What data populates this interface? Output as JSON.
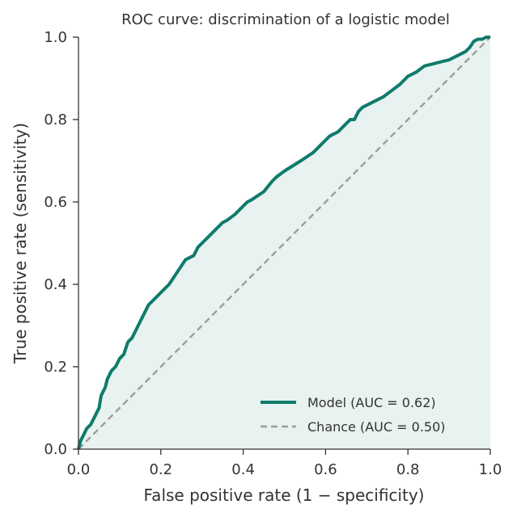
{
  "chart_data": {
    "type": "line",
    "title": "ROC curve: discrimination of a logistic model",
    "xlabel": "False positive rate (1 − specificity)",
    "ylabel": "True positive rate (sensitivity)",
    "xlim": [
      0,
      1
    ],
    "ylim": [
      0,
      1
    ],
    "xticks": [
      "0.0",
      "0.2",
      "0.4",
      "0.6",
      "0.8",
      "1.0"
    ],
    "yticks": [
      "0.0",
      "0.2",
      "0.4",
      "0.6",
      "0.8",
      "1.0"
    ],
    "grid": false,
    "legend_position": "bottom-right",
    "series": [
      {
        "name": "Model (AUC = 0.62)",
        "color": "#0f7b6c",
        "style": "solid",
        "fill": "#e8f2f0",
        "x": [
          0.0,
          0.005,
          0.01,
          0.02,
          0.03,
          0.04,
          0.05,
          0.055,
          0.065,
          0.07,
          0.08,
          0.09,
          0.1,
          0.11,
          0.12,
          0.13,
          0.14,
          0.15,
          0.16,
          0.17,
          0.18,
          0.19,
          0.2,
          0.21,
          0.22,
          0.24,
          0.26,
          0.28,
          0.29,
          0.3,
          0.31,
          0.33,
          0.35,
          0.36,
          0.38,
          0.39,
          0.4,
          0.41,
          0.42,
          0.45,
          0.47,
          0.48,
          0.5,
          0.54,
          0.57,
          0.59,
          0.6,
          0.61,
          0.62,
          0.63,
          0.65,
          0.66,
          0.67,
          0.68,
          0.69,
          0.7,
          0.72,
          0.74,
          0.76,
          0.78,
          0.8,
          0.82,
          0.84,
          0.86,
          0.88,
          0.9,
          0.92,
          0.94,
          0.95,
          0.96,
          0.97,
          0.98,
          0.99,
          1.0
        ],
        "y": [
          0.0,
          0.02,
          0.03,
          0.05,
          0.06,
          0.08,
          0.1,
          0.13,
          0.15,
          0.17,
          0.19,
          0.2,
          0.22,
          0.23,
          0.26,
          0.27,
          0.29,
          0.31,
          0.33,
          0.35,
          0.36,
          0.37,
          0.38,
          0.39,
          0.4,
          0.43,
          0.46,
          0.47,
          0.49,
          0.5,
          0.51,
          0.53,
          0.55,
          0.555,
          0.57,
          0.58,
          0.59,
          0.6,
          0.605,
          0.625,
          0.65,
          0.66,
          0.675,
          0.7,
          0.72,
          0.74,
          0.75,
          0.76,
          0.765,
          0.77,
          0.79,
          0.8,
          0.8,
          0.82,
          0.83,
          0.835,
          0.845,
          0.855,
          0.87,
          0.885,
          0.905,
          0.915,
          0.93,
          0.935,
          0.94,
          0.945,
          0.955,
          0.965,
          0.975,
          0.99,
          0.995,
          0.995,
          1.0,
          1.0
        ]
      },
      {
        "name": "Chance (AUC = 0.50)",
        "color": "#9b9e9d",
        "style": "dashed",
        "x": [
          0,
          1
        ],
        "y": [
          0,
          1
        ]
      }
    ]
  }
}
